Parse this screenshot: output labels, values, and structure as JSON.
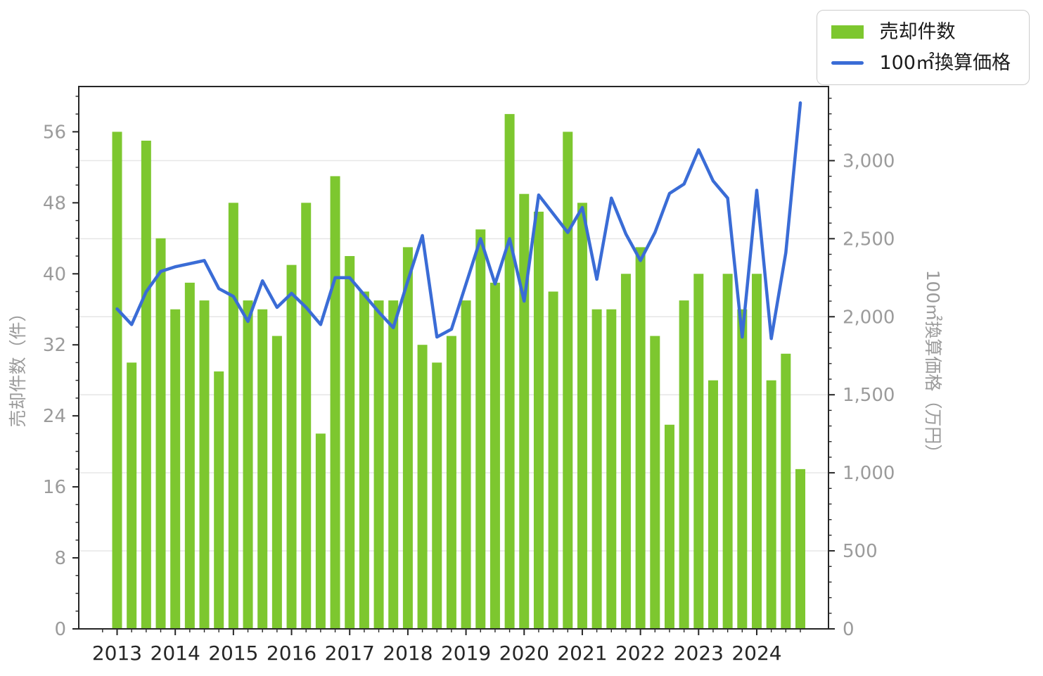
{
  "chart_data": {
    "type": "bar+line",
    "title": "",
    "categories": [
      "2013Q1",
      "2013Q2",
      "2013Q3",
      "2013Q4",
      "2014Q1",
      "2014Q2",
      "2014Q3",
      "2014Q4",
      "2015Q1",
      "2015Q2",
      "2015Q3",
      "2015Q4",
      "2016Q1",
      "2016Q2",
      "2016Q3",
      "2016Q4",
      "2017Q1",
      "2017Q2",
      "2017Q3",
      "2017Q4",
      "2018Q1",
      "2018Q2",
      "2018Q3",
      "2018Q4",
      "2019Q1",
      "2019Q2",
      "2019Q3",
      "2019Q4",
      "2020Q1",
      "2020Q2",
      "2020Q3",
      "2020Q4",
      "2021Q1",
      "2021Q2",
      "2021Q3",
      "2021Q4",
      "2022Q1",
      "2022Q2",
      "2022Q3",
      "2022Q4",
      "2023Q1",
      "2023Q2",
      "2023Q3",
      "2023Q4",
      "2024Q1",
      "2024Q2",
      "2024Q3",
      "2024Q4"
    ],
    "series": [
      {
        "name": "売却件数",
        "type": "bar",
        "axis": "left",
        "color": "#7dc72f",
        "values": [
          56,
          30,
          55,
          44,
          36,
          39,
          37,
          29,
          48,
          37,
          36,
          33,
          41,
          48,
          22,
          51,
          42,
          38,
          37,
          37,
          43,
          32,
          30,
          33,
          37,
          45,
          39,
          58,
          49,
          47,
          38,
          56,
          48,
          36,
          36,
          40,
          43,
          33,
          23,
          37,
          40,
          28,
          40,
          36,
          40,
          28,
          31,
          18
        ]
      },
      {
        "name": "100㎡換算価格",
        "type": "line",
        "axis": "right",
        "color": "#3a6cd6",
        "values": [
          2050,
          1950,
          2160,
          2290,
          2320,
          2340,
          2360,
          2180,
          2130,
          1970,
          2230,
          2060,
          2150,
          2060,
          1950,
          2250,
          2250,
          2140,
          2030,
          1930,
          2230,
          2520,
          1870,
          1920,
          2210,
          2500,
          2210,
          2500,
          2100,
          2780,
          2660,
          2540,
          2700,
          2240,
          2760,
          2530,
          2360,
          2540,
          2790,
          2850,
          3070,
          2870,
          2760,
          1870,
          2810,
          1860,
          2410,
          3370
        ]
      }
    ],
    "axes": {
      "left": {
        "title": "売却件数（件）",
        "ticks": [
          0,
          8,
          16,
          24,
          32,
          40,
          48,
          56
        ],
        "tick_labels": [
          "0",
          "8",
          "16",
          "24",
          "32",
          "40",
          "48",
          "56"
        ],
        "max": 61.1,
        "minor_step": 2
      },
      "right": {
        "title": "100㎡換算価格（万円）",
        "ticks": [
          0,
          500,
          1000,
          1500,
          2000,
          2500,
          3000
        ],
        "tick_labels": [
          "0",
          "500",
          "1,000",
          "1,500",
          "2,000",
          "2,500",
          "3,000"
        ],
        "max": 3475,
        "minor_step": 100
      },
      "x": {
        "year_labels": [
          "2013",
          "2014",
          "2015",
          "2016",
          "2017",
          "2018",
          "2019",
          "2020",
          "2021",
          "2022",
          "2023",
          "2024"
        ],
        "quarters_per_year": 4
      }
    },
    "legend": {
      "position": "upper right",
      "items": [
        "売却件数",
        "100㎡換算価格"
      ]
    },
    "grid": {
      "lines": "right-axis-majors",
      "color": "#e6e6e6"
    },
    "style": {
      "spine_color": "#262626",
      "y_tick_label_color": "#9b9b9b",
      "x_tick_label_color": "#262626"
    }
  }
}
